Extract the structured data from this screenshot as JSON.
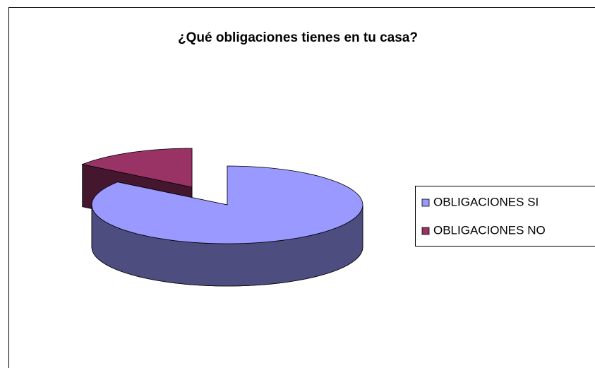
{
  "chart_data": {
    "type": "pie",
    "title": "¿Qué obligaciones tienes en tu casa?",
    "categories": [
      "OBLIGACIONES SI",
      "OBLIGACIONES NO"
    ],
    "values": [
      85,
      15
    ],
    "colors": [
      "#9999ff",
      "#993366"
    ],
    "legend": "right"
  }
}
